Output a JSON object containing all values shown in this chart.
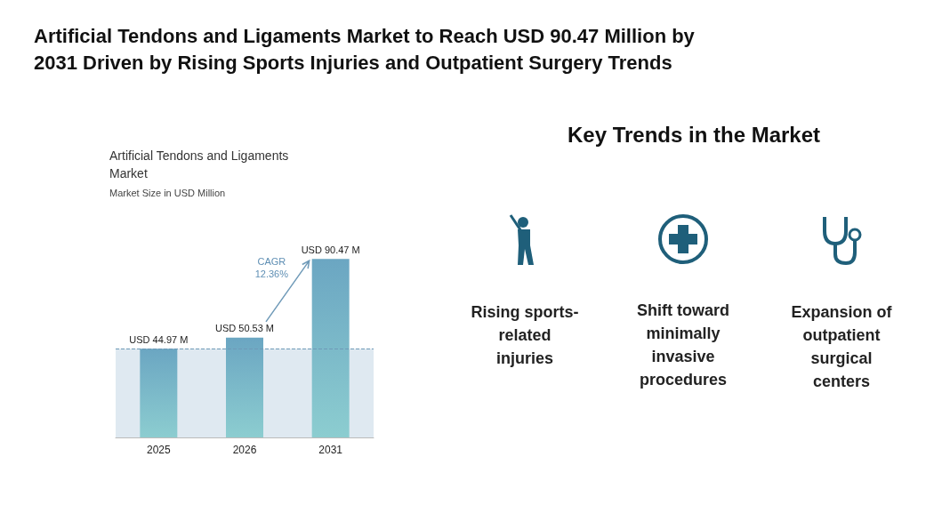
{
  "chart_data": [
    {
      "type": "bar",
      "title": "Artificial Tendons and Ligaments Market to Reach USD 90.47 Million by 2031 Driven by Rising Sports Injuries and Outpatient Surgery Trends",
      "subtitle": "Artificial Tendons and Ligaments Market",
      "ylabel": "Market Size in USD Million",
      "categories": [
        "2025",
        "2026",
        "2031"
      ],
      "values": [
        44.97,
        50.53,
        90.47
      ],
      "color": "#6ba6c2",
      "value_labels": [
        "USD 44.97 M",
        "USD 50.53 M",
        "USD 90.47 M"
      ],
      "ref_lines": [
        {
          "axis": "y",
          "value": 44.97,
          "color": "#6f9ab8",
          "line_style": "dashed"
        }
      ],
      "bands": [
        {
          "axis": "y",
          "from": 0,
          "to": 44.97,
          "color": "#dfe9f1"
        }
      ],
      "annotations": [
        "CAGR 12.36%"
      ]
    },
    {
      "type": "other",
      "title": "Key Trends in the Market",
      "annotations": [
        "Rising sports-related injuries",
        "Shift toward minimally invasive procedures",
        "Expansion of outpatient surgical centers"
      ]
    }
  ]
}
